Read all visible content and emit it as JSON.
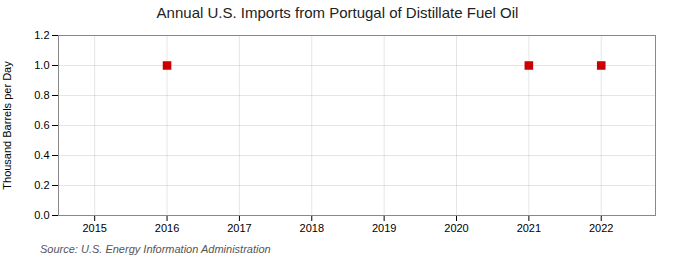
{
  "chart_data": {
    "type": "scatter",
    "title": "Annual U.S. Imports from Portugal of Distillate Fuel Oil",
    "ylabel": "Thousand Barrels per Day",
    "caption": "Source: U.S. Energy Information Administration",
    "x": [
      2016,
      2021,
      2022
    ],
    "values": [
      1.0,
      1.0,
      1.0
    ],
    "color": "#CC0000",
    "marker": "square",
    "xlim": [
      2014.5,
      2022.75
    ],
    "ylim": [
      0.0,
      1.2
    ],
    "xticks": [
      2015,
      2016,
      2017,
      2018,
      2019,
      2020,
      2021,
      2022
    ],
    "yticks": [
      {
        "value": 0.0,
        "label": "0.0"
      },
      0.2,
      0.4,
      0.6,
      0.8,
      {
        "value": 1.0,
        "label": "1.0"
      },
      1.2
    ],
    "grid": true
  }
}
